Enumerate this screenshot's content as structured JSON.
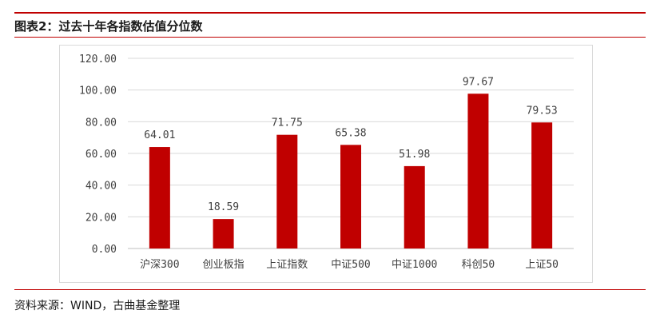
{
  "figure": {
    "title": "图表2：过去十年各指数估值分位数",
    "source": "资料来源：WIND，古曲基金整理"
  },
  "colors": {
    "bar": "#c00000",
    "rule": "#c00000",
    "grid": "#d9d9d9"
  },
  "chart_data": {
    "type": "bar",
    "categories": [
      "沪深300",
      "创业板指",
      "上证指数",
      "中证500",
      "中证1000",
      "科创50",
      "上证50"
    ],
    "values": [
      64.01,
      18.59,
      71.75,
      65.38,
      51.98,
      97.67,
      79.53
    ],
    "value_labels": [
      "64.01",
      "18.59",
      "71.75",
      "65.38",
      "51.98",
      "97.67",
      "79.53"
    ],
    "ylim": [
      0,
      120
    ],
    "yticks": [
      "0.00",
      "20.00",
      "40.00",
      "60.00",
      "80.00",
      "100.00",
      "120.00"
    ],
    "grid": true,
    "legend": "none"
  }
}
